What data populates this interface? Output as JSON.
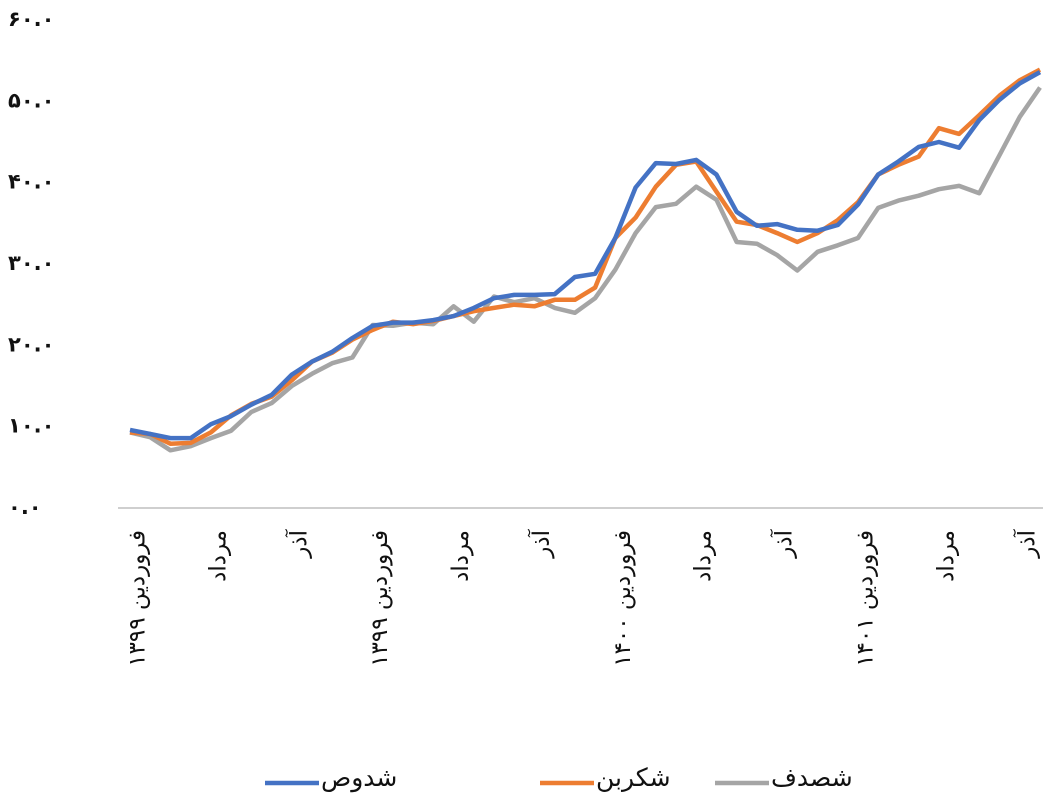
{
  "chart_data": {
    "type": "line",
    "categories": [
      "فروردین ۱۳۹۹",
      null,
      null,
      null,
      "مرداد",
      null,
      null,
      null,
      "آذر",
      null,
      null,
      null,
      "فروردین ۱۳۹۹",
      null,
      null,
      null,
      "مرداد",
      null,
      null,
      null,
      "آذر",
      null,
      null,
      null,
      "فروردین ۱۴۰۰",
      null,
      null,
      null,
      "مرداد",
      null,
      null,
      null,
      "آذر",
      null,
      null,
      null,
      "فروردین ۱۴۰۱",
      null,
      null,
      null,
      "مرداد",
      null,
      null,
      null,
      "آذر",
      null
    ],
    "series": [
      {
        "name": "شدوص",
        "color": "#4472c4",
        "values": [
          9.6,
          9.1,
          8.6,
          8.6,
          10.3,
          11.3,
          12.7,
          13.9,
          16.4,
          18.0,
          19.2,
          20.9,
          22.4,
          22.8,
          22.8,
          23.1,
          23.6,
          24.6,
          25.8,
          26.2,
          26.2,
          26.3,
          28.4,
          28.8,
          33.2,
          39.4,
          42.4,
          42.3,
          42.8,
          41.0,
          36.4,
          34.7,
          34.9,
          34.2,
          34.1,
          34.8,
          37.3,
          41.0,
          42.6,
          44.4,
          45.0,
          44.3,
          47.7,
          50.2,
          52.2,
          53.6
        ]
      },
      {
        "name": "شکربن",
        "color": "#ed7d31",
        "values": [
          9.3,
          9.1,
          7.9,
          8.0,
          9.3,
          11.4,
          12.8,
          13.7,
          15.7,
          18.0,
          19.1,
          20.7,
          21.9,
          22.9,
          22.6,
          23.0,
          23.6,
          24.2,
          24.6,
          25.0,
          24.8,
          25.6,
          25.6,
          27.1,
          33.2,
          35.7,
          39.5,
          42.2,
          42.6,
          38.9,
          35.2,
          34.8,
          33.8,
          32.7,
          33.8,
          35.4,
          37.6,
          41.0,
          42.2,
          43.2,
          46.7,
          46.0,
          48.3,
          50.7,
          52.6,
          53.9
        ]
      },
      {
        "name": "شصدف",
        "color": "#a5a5a5",
        "values": [
          9.3,
          8.7,
          7.1,
          7.6,
          8.6,
          9.5,
          11.8,
          12.9,
          15.0,
          16.5,
          17.8,
          18.5,
          22.5,
          22.4,
          22.8,
          22.6,
          24.8,
          22.9,
          26.0,
          25.3,
          25.8,
          24.6,
          24.0,
          25.8,
          29.3,
          33.8,
          37.0,
          37.4,
          39.5,
          37.9,
          32.7,
          32.5,
          31.1,
          29.2,
          31.5,
          32.3,
          33.2,
          36.9,
          37.8,
          38.4,
          39.2,
          39.6,
          38.7,
          43.4,
          48.1,
          51.7
        ]
      }
    ],
    "ylim": [
      0,
      60
    ],
    "yticks": [
      {
        "value": 0,
        "label": "۰.۰"
      },
      {
        "value": 10,
        "label": "۱۰.۰"
      },
      {
        "value": 20,
        "label": "۲۰.۰"
      },
      {
        "value": 30,
        "label": "۳۰.۰"
      },
      {
        "value": 40,
        "label": "۴۰.۰"
      },
      {
        "value": 50,
        "label": "۵۰.۰"
      },
      {
        "value": 60,
        "label": "۶۰.۰"
      }
    ],
    "grid": false,
    "legend": "bottom"
  }
}
